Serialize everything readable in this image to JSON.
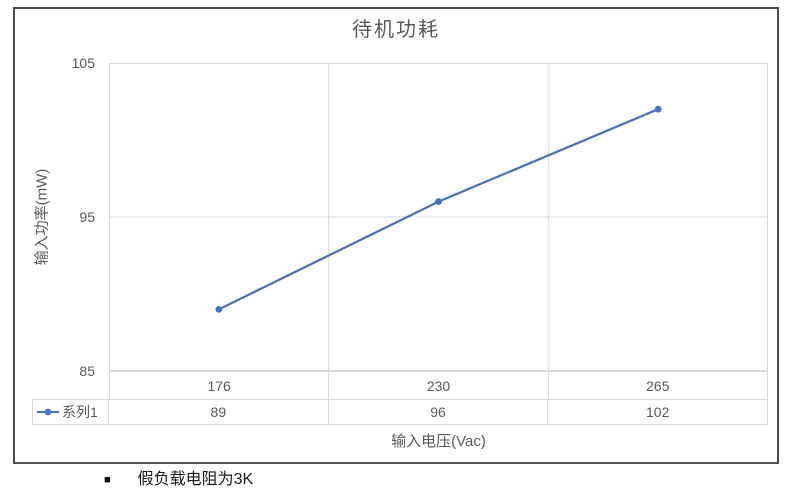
{
  "chart_data": {
    "type": "line",
    "title": "待机功耗",
    "categories": [
      "176",
      "230",
      "265"
    ],
    "series": [
      {
        "name": "系列1",
        "values": [
          89,
          96,
          102
        ]
      }
    ],
    "xlabel": "输入电压(Vac)",
    "ylabel": "输入功率(mW)",
    "ylim": [
      85,
      105
    ],
    "y_ticks": [
      "105",
      "95",
      "85"
    ],
    "grid": true,
    "data_table_shown": true,
    "legend_position": "data-table-left",
    "marker": "circle",
    "colors": {
      "series": "#4472C4",
      "grid": "#d9d9d9",
      "text": "#595959"
    }
  },
  "note": {
    "bullet": "■",
    "text": "假负载电阻为3K"
  }
}
